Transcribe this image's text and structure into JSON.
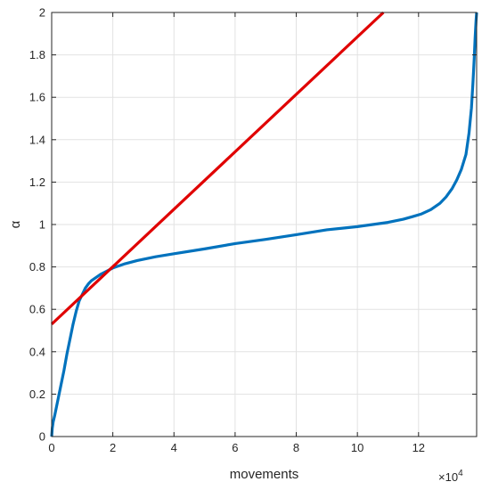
{
  "chart_data": {
    "type": "line",
    "xlabel": "movements",
    "ylabel": "α",
    "x_multiplier_base": "×10",
    "x_multiplier_exp": "4",
    "xlim": [
      0,
      139000
    ],
    "ylim": [
      0,
      2
    ],
    "x_ticks": [
      0,
      20000,
      40000,
      60000,
      80000,
      100000,
      120000
    ],
    "x_tick_labels": [
      "0",
      "2",
      "4",
      "6",
      "8",
      "10",
      "12"
    ],
    "y_ticks": [
      0,
      0.2,
      0.4,
      0.6,
      0.8,
      1,
      1.2,
      1.4,
      1.6,
      1.8,
      2
    ],
    "y_tick_labels": [
      "0",
      "0.2",
      "0.4",
      "0.6",
      "0.8",
      "1",
      "1.2",
      "1.4",
      "1.6",
      "1.8",
      "2"
    ],
    "grid": true,
    "colors": {
      "curve": "#0072bd",
      "line": "#e00000",
      "grid": "#e2e2e2",
      "axis": "#262626"
    },
    "series": [
      {
        "color": "#0072bd",
        "x": [
          0,
          200,
          500,
          1000,
          2000,
          3000,
          4000,
          5000,
          6000,
          7000,
          8000,
          9000,
          10000,
          11000,
          12000,
          13000,
          14000,
          16000,
          18000,
          20000,
          24000,
          28000,
          34000,
          40000,
          50000,
          60000,
          70000,
          80000,
          90000,
          100000,
          105000,
          110000,
          115000,
          118000,
          121000,
          124000,
          127000,
          129000,
          131000,
          132500,
          134000,
          135500,
          136500,
          137300,
          137800,
          138200,
          138500,
          138800,
          139000
        ],
        "y": [
          0,
          0.04,
          0.07,
          0.1,
          0.17,
          0.24,
          0.31,
          0.39,
          0.46,
          0.53,
          0.59,
          0.64,
          0.67,
          0.7,
          0.72,
          0.735,
          0.745,
          0.765,
          0.78,
          0.795,
          0.815,
          0.83,
          0.848,
          0.862,
          0.885,
          0.91,
          0.93,
          0.952,
          0.975,
          0.99,
          1.0,
          1.01,
          1.025,
          1.037,
          1.05,
          1.07,
          1.1,
          1.13,
          1.17,
          1.21,
          1.26,
          1.33,
          1.43,
          1.55,
          1.67,
          1.78,
          1.88,
          1.96,
          2.0
        ]
      },
      {
        "color": "#e00000",
        "x": [
          0,
          108500
        ],
        "y": [
          0.53,
          2.0
        ]
      }
    ]
  }
}
